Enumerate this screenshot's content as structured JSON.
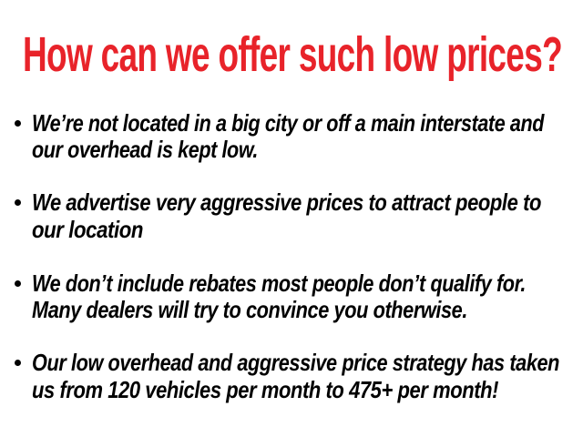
{
  "title": "How can we offer such low prices?",
  "title_color": "#e8232a",
  "bullets": [
    {
      "lines": [
        "We’re not located in a big city or off a main interstate and",
        "our overhead is kept low."
      ]
    },
    {
      "lines": [
        "We advertise very aggressive prices to attract people to",
        "our location"
      ]
    },
    {
      "lines": [
        "We don’t include rebates most people don’t qualify for.",
        "Many dealers will try to convince you otherwise."
      ]
    },
    {
      "lines": [
        "Our low overhead and aggressive price strategy has taken",
        "us from 120 vehicles per month to 475+ per month!"
      ]
    }
  ]
}
